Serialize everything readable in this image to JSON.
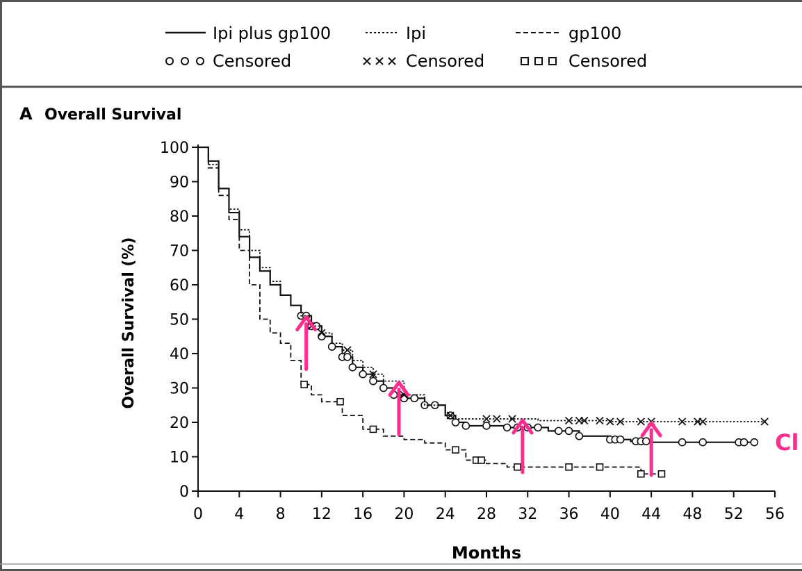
{
  "legend": {
    "items": [
      {
        "label": "Ipi plus gp100",
        "line": "solid"
      },
      {
        "label": "Ipi",
        "line": "dotted"
      },
      {
        "label": "gp100",
        "line": "dashed"
      }
    ],
    "censored": [
      {
        "label": "Censored",
        "symbol": "circle"
      },
      {
        "label": "Censored",
        "symbol": "x"
      },
      {
        "label": "Censored",
        "symbol": "square"
      }
    ]
  },
  "panel": {
    "letter": "A",
    "title": "Overall Survival"
  },
  "annotation": {
    "cropped_text": "Cl",
    "arrow_color": "#ff2d8f"
  },
  "chart_data": {
    "type": "line",
    "title": "Overall Survival",
    "xlabel": "Months",
    "ylabel": "Overall Survival (%)",
    "xlim": [
      0,
      56
    ],
    "ylim": [
      0,
      100
    ],
    "xticks": [
      0,
      4,
      8,
      12,
      16,
      20,
      24,
      28,
      32,
      36,
      40,
      44,
      48,
      52,
      56
    ],
    "yticks": [
      0,
      10,
      20,
      30,
      40,
      50,
      60,
      70,
      80,
      90,
      100
    ],
    "grid": false,
    "legend_position": "top",
    "series": [
      {
        "name": "Ipi plus gp100",
        "line": "solid",
        "censor_symbol": "circle",
        "x": [
          0,
          1,
          2,
          3,
          4,
          5,
          6,
          7,
          8,
          9,
          10,
          11,
          12,
          13,
          14,
          15,
          16,
          17,
          18,
          19,
          20,
          22,
          24,
          25,
          26,
          30,
          34,
          37,
          40,
          42,
          44,
          48,
          52,
          54
        ],
        "y": [
          100,
          96,
          88,
          81,
          74,
          68,
          64,
          60,
          57,
          54,
          51,
          48,
          45,
          42,
          39,
          36,
          34,
          32,
          30,
          28,
          27,
          25,
          22,
          20,
          19,
          18.5,
          17.5,
          16,
          15,
          14.5,
          14.2,
          14.2,
          14.2,
          14.2
        ],
        "censored_x": [
          10,
          10.5,
          11,
          11.5,
          12,
          13,
          14,
          14.5,
          15,
          16,
          17,
          18,
          19,
          20,
          21,
          22,
          23,
          24.5,
          25,
          26,
          28,
          30,
          31,
          32,
          33,
          35,
          36,
          37,
          40,
          40.5,
          41,
          42.5,
          43,
          43.5,
          47,
          49,
          52.5,
          53,
          54
        ]
      },
      {
        "name": "Ipi",
        "line": "dotted",
        "censor_symbol": "x",
        "x": [
          0,
          1,
          2,
          3,
          4,
          5,
          6,
          7,
          8,
          9,
          10,
          11,
          12,
          13,
          14,
          15,
          16,
          17,
          18,
          20,
          22,
          24,
          25,
          28,
          33,
          40,
          48,
          55
        ],
        "y": [
          100,
          95,
          88,
          82,
          76,
          70,
          65,
          61,
          57,
          54,
          51,
          48,
          46,
          43,
          41,
          38,
          36,
          34,
          32,
          28,
          25,
          22,
          21,
          21,
          20.5,
          20.2,
          20.2,
          20.2
        ],
        "censored_x": [
          11,
          12,
          14.5,
          17,
          20,
          24.5,
          28,
          29,
          30.5,
          36,
          37,
          37.5,
          39,
          40,
          41,
          43,
          44,
          47,
          48.5,
          49,
          55
        ]
      },
      {
        "name": "gp100",
        "line": "dashed",
        "censor_symbol": "square",
        "x": [
          0,
          1,
          2,
          3,
          4,
          5,
          6,
          7,
          8,
          9,
          10,
          11,
          12,
          14,
          16,
          18,
          20,
          22,
          24,
          26,
          28,
          30,
          42,
          43,
          45
        ],
        "y": [
          100,
          94,
          86,
          79,
          70,
          60,
          50,
          46,
          43,
          38,
          31,
          28,
          26,
          22,
          18,
          16,
          15,
          14,
          12,
          9,
          8,
          7,
          7,
          5,
          5
        ],
        "censored_x": [
          10.3,
          13.8,
          17,
          25,
          27,
          27.5,
          31,
          36,
          39,
          43,
          45
        ]
      }
    ],
    "highlight_arrows_at_months": [
      10.5,
      19.5,
      31.5,
      44
    ]
  }
}
